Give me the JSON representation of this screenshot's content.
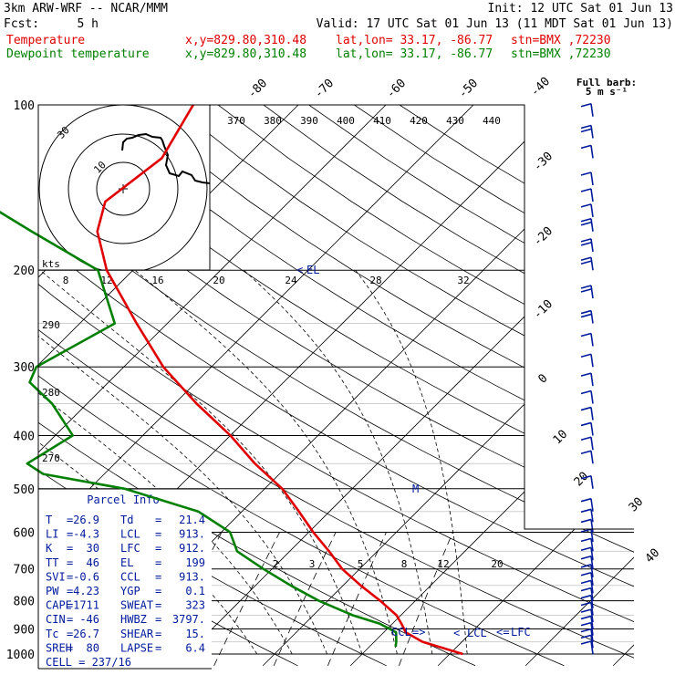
{
  "header": {
    "model": "3km ARW-WRF -- NCAR/MMM",
    "init": "Init: 12 UTC Sat 01 Jun 13",
    "fcst_label": "Fcst:",
    "fcst_value": "5 h",
    "valid": "Valid: 17 UTC Sat 01 Jun 13 (11 MDT Sat 01 Jun 13)",
    "line_temp": "Temperature",
    "line_dew": "Dewpoint temperature",
    "xy": "x,y=829.80,310.48",
    "latlon": "lat,lon= 33.17, -86.77",
    "stn": "stn=BMX ,72230"
  },
  "wind_legend": {
    "title": "Full barb:",
    "value": "5 m s⁻¹"
  },
  "hodograph": {
    "units": "kts",
    "ring_labels": [
      "10",
      "30"
    ]
  },
  "parcel": {
    "title": "Parcel Info",
    "rows": [
      [
        "T",
        "=",
        "26.9",
        "Td",
        "=",
        "21.4"
      ],
      [
        "LI",
        "=",
        "-4.3",
        "LCL",
        "=",
        "913."
      ],
      [
        "K",
        "=",
        "30",
        "LFC",
        "=",
        "912."
      ],
      [
        "TT",
        "=",
        "46",
        "EL",
        "=",
        "199"
      ],
      [
        "SVI",
        "=",
        "-0.6",
        "CCL",
        "=",
        "913."
      ],
      [
        "PW",
        "=",
        "4.23",
        "YGP",
        "=",
        "0.1"
      ],
      [
        "CAPE",
        "=",
        "1711",
        "SWEAT",
        "=",
        "323"
      ],
      [
        "CIN",
        "=",
        "-46",
        "HWBZ",
        "=",
        "3797."
      ],
      [
        "Tc",
        "=",
        "26.7",
        "SHEAR",
        "=",
        "15."
      ],
      [
        "SREH",
        "=",
        "80",
        "LAPSE",
        "=",
        "6.4"
      ]
    ],
    "cell": "CELL = 237/16"
  },
  "markers": {
    "el": "EL",
    "ccl": "CCL",
    "lcl": "LCL",
    "lfc": "LFC",
    "m": "M"
  },
  "mixing_ratio_labels": [
    "2",
    "3",
    "5",
    "8",
    "12",
    "20"
  ],
  "theta_labels_top": [
    "370",
    "380",
    "390",
    "400",
    "410",
    "420",
    "430",
    "440"
  ],
  "theta_labels_left": [
    "290",
    "280",
    "270"
  ],
  "thetae_labels_mid": [
    "8",
    "12",
    "16",
    "20",
    "24",
    "28",
    "32"
  ],
  "colors": {
    "temperature": "#e00000",
    "dewpoint": "#008000",
    "barbs": "#001a9c"
  },
  "chart_data": {
    "type": "line",
    "title": "",
    "xlabel": "",
    "ylabel": "",
    "y_scale": "log-pressure",
    "y_ticks": [
      100,
      200,
      300,
      400,
      500,
      600,
      700,
      800,
      900,
      1000
    ],
    "ylim": [
      1000,
      100
    ],
    "isotherm_labels_top": [
      "-80",
      "-70",
      "-60",
      "-50",
      "-40"
    ],
    "isotherm_labels_right": [
      "-30",
      "-20",
      "-10",
      "0",
      "10",
      "20",
      "30",
      "40"
    ],
    "series": [
      {
        "name": "Temperature",
        "pressure": [
          1000,
          950,
          913,
          880,
          850,
          800,
          750,
          700,
          650,
          600,
          550,
          500,
          450,
          400,
          350,
          300,
          250,
          200,
          170,
          150,
          125,
          100
        ],
        "temperature_C": [
          31.5,
          25.5,
          22.5,
          21.0,
          19.5,
          16.0,
          12.0,
          8.0,
          4.5,
          0.5,
          -3.5,
          -8.0,
          -14.0,
          -20.0,
          -27.5,
          -35.5,
          -43.5,
          -53.0,
          -58.5,
          -61.0,
          -59.5,
          -62.0
        ]
      },
      {
        "name": "Dewpoint temperature",
        "pressure": [
          970,
          950,
          913,
          880,
          850,
          800,
          750,
          700,
          650,
          600,
          550,
          500,
          470,
          450,
          400,
          350,
          320,
          300,
          250,
          200,
          170,
          150,
          125,
          100
        ],
        "temperature_C": [
          23.0,
          22.5,
          21.4,
          18.5,
          14.5,
          9.0,
          4.0,
          -1.0,
          -6.0,
          -9.0,
          -15.0,
          -26.0,
          -37.0,
          -40.0,
          -38.0,
          -44.0,
          -49.0,
          -50.0,
          -46.0,
          -54.0,
          -66.0,
          -75.0,
          -83.0,
          -86.0
        ]
      }
    ],
    "wind_barbs": {
      "units": "m s-1",
      "pressure": [
        1000,
        975,
        950,
        925,
        900,
        875,
        850,
        825,
        800,
        775,
        750,
        725,
        700,
        675,
        650,
        625,
        600,
        575,
        550,
        500,
        450,
        425,
        400,
        375,
        350,
        325,
        300,
        275,
        250,
        225,
        200,
        185,
        170,
        160,
        150,
        140,
        125,
        115,
        105
      ],
      "speed": [
        4,
        5,
        5,
        6,
        6,
        4,
        3,
        3,
        3,
        3,
        3,
        2,
        2,
        3,
        3,
        3,
        3,
        3,
        3,
        4,
        4,
        4,
        5,
        6,
        6,
        6,
        6,
        7,
        8,
        10,
        9,
        9,
        8,
        7,
        7,
        6,
        7,
        8,
        5
      ]
    }
  }
}
